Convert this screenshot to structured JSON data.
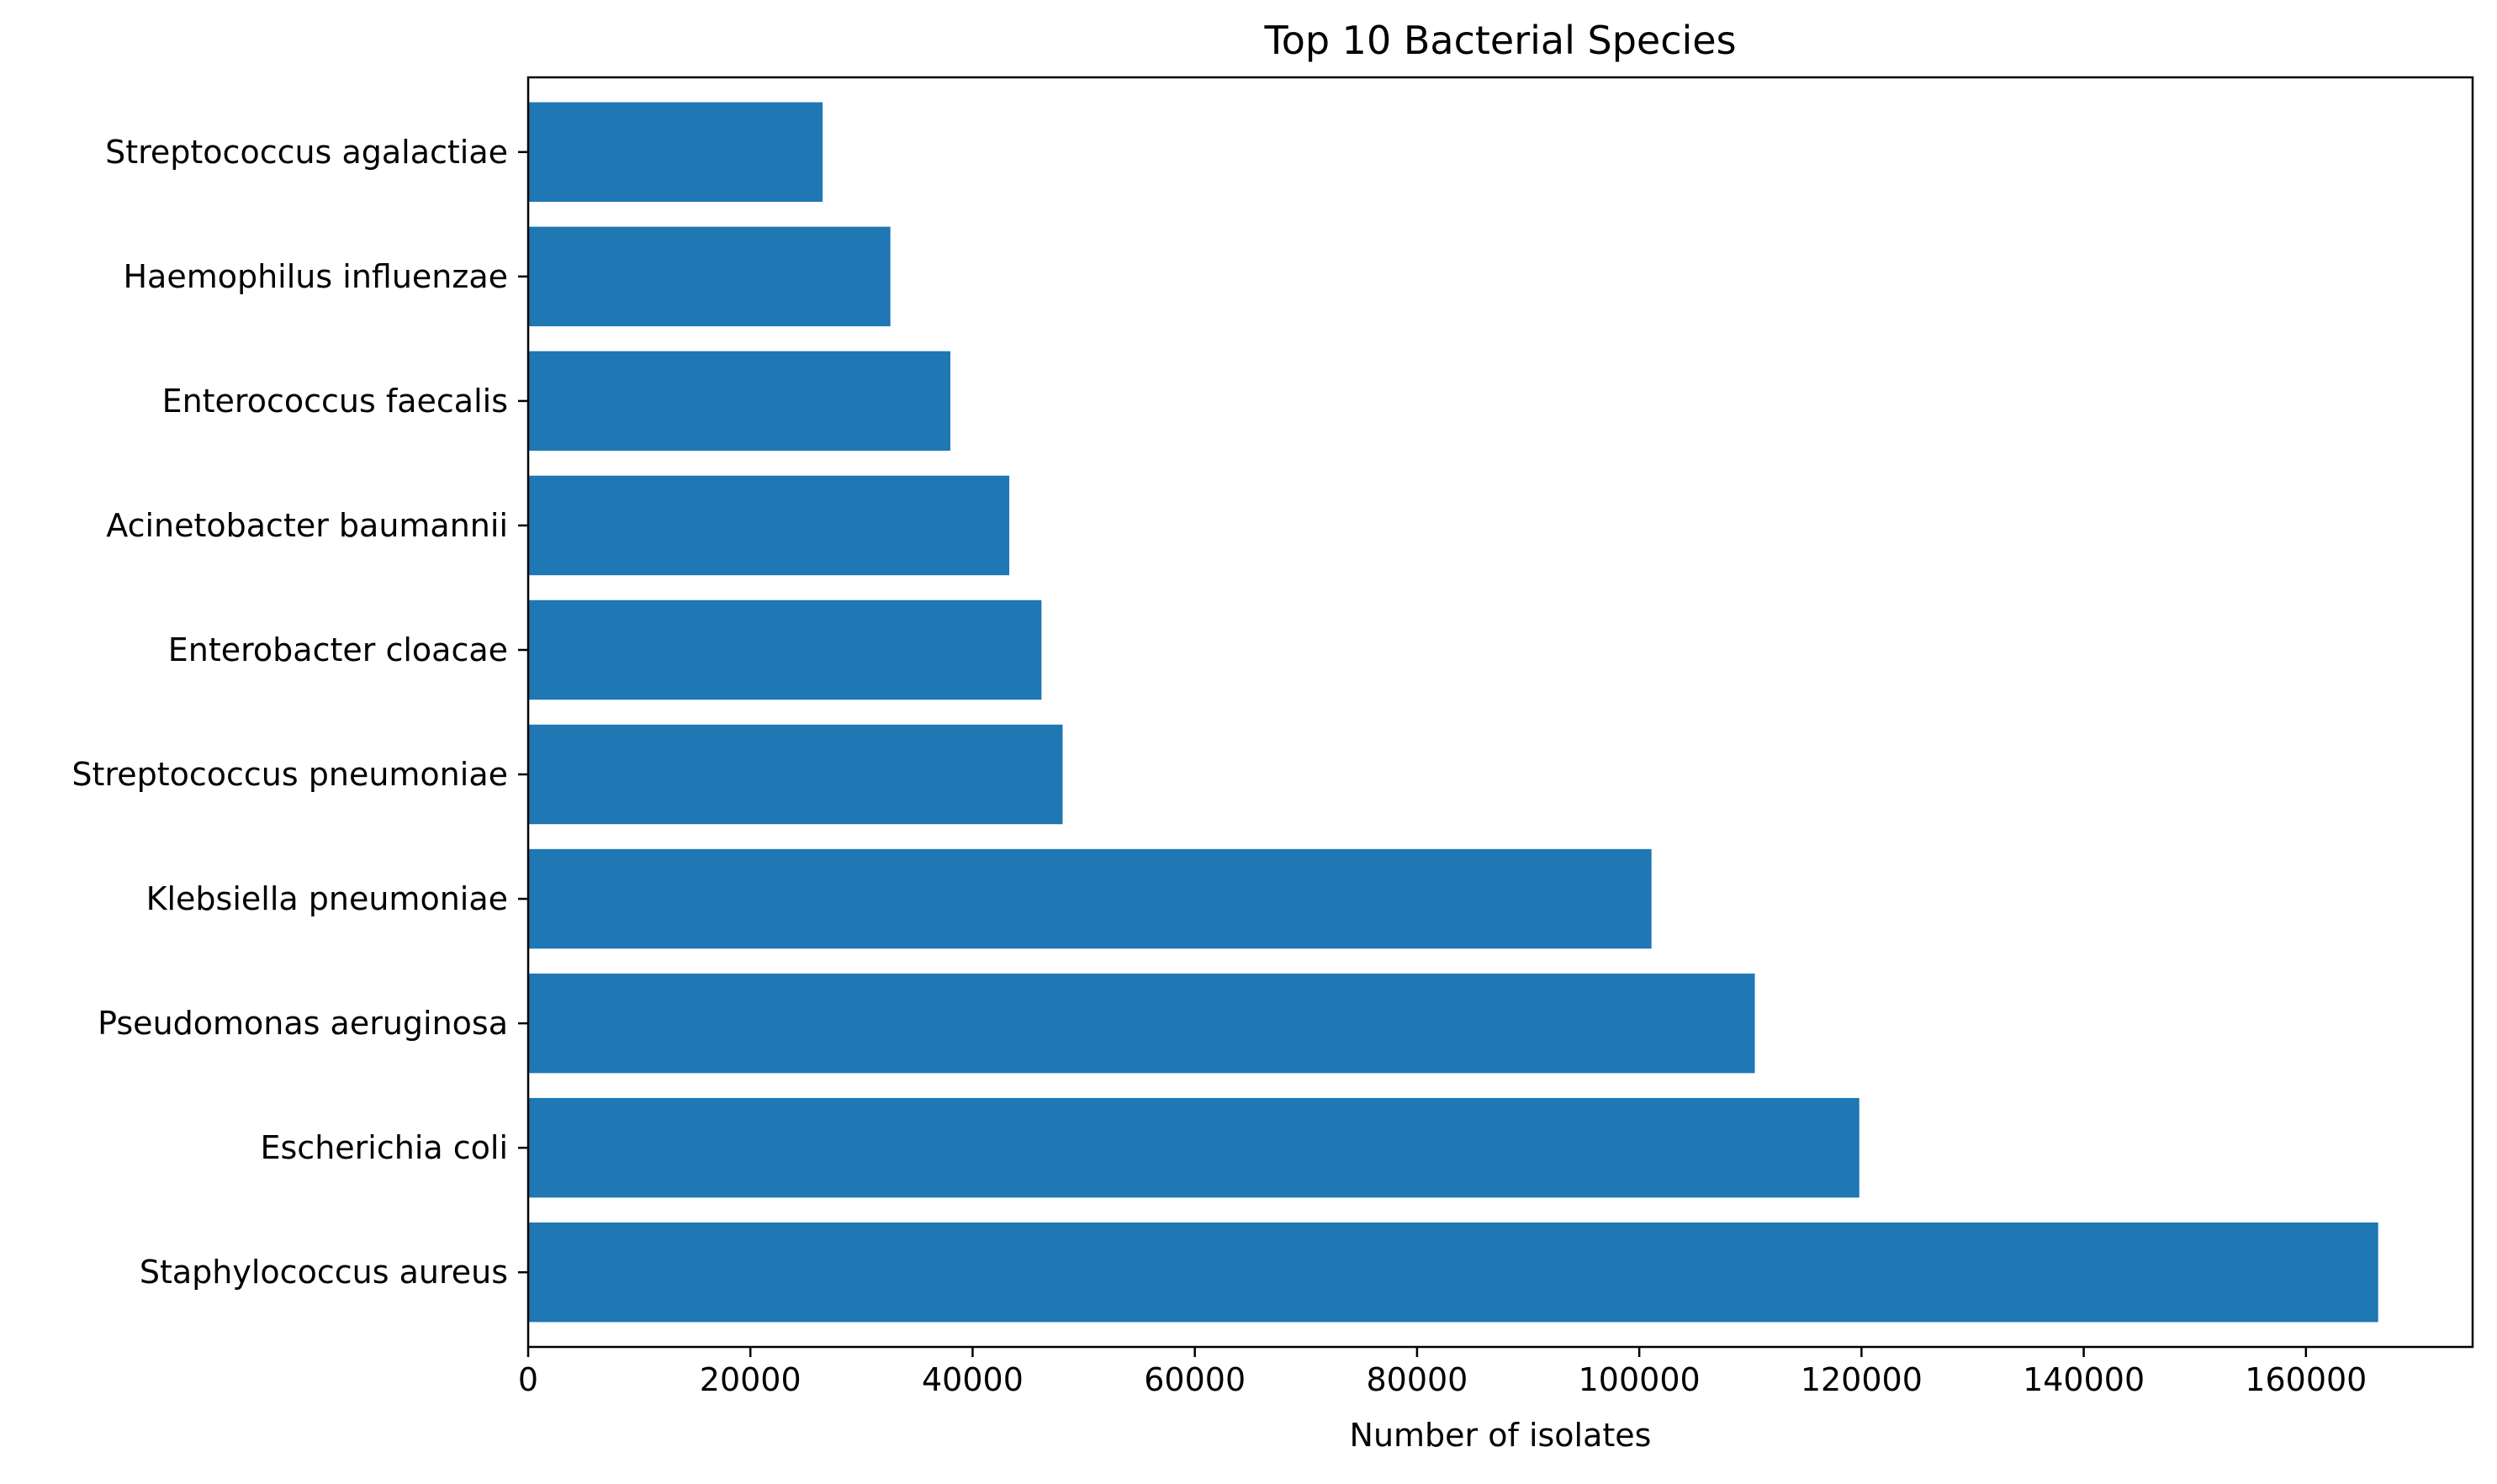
{
  "chart_data": {
    "type": "bar",
    "orientation": "horizontal",
    "title": "Top 10 Bacterial Species",
    "xlabel": "Number of isolates",
    "ylabel": "",
    "categories": [
      "Staphylococcus aureus",
      "Escherichia coli",
      "Pseudomonas aeruginosa",
      "Klebsiella pneumoniae",
      "Streptococcus pneumoniae",
      "Enterobacter cloacae",
      "Acinetobacter baumannii",
      "Enterococcus faecalis",
      "Haemophilus influenzae",
      "Streptococcus agalactiae"
    ],
    "values": [
      166500,
      119800,
      110400,
      101100,
      48100,
      46200,
      43300,
      38000,
      32600,
      26500
    ],
    "xlim": [
      0,
      175000
    ],
    "xticks": [
      0,
      20000,
      40000,
      60000,
      80000,
      100000,
      120000,
      140000,
      160000
    ],
    "xtick_labels": [
      "0",
      "20000",
      "40000",
      "60000",
      "80000",
      "100000",
      "120000",
      "140000",
      "160000"
    ],
    "bar_color": "#1f77b4",
    "grid": false,
    "legend": "none"
  }
}
